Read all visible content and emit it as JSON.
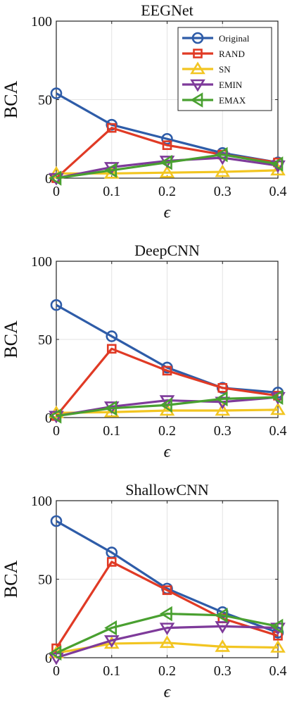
{
  "chart_data": [
    {
      "type": "line",
      "title": "EEGNet",
      "xlabel": "ϵ",
      "ylabel": "BCA",
      "x": [
        0,
        0.1,
        0.2,
        0.3,
        0.4
      ],
      "x_tick_labels": [
        "0",
        "0.1",
        "0.2",
        "0.3",
        "0.4"
      ],
      "y_tick_labels": [
        "0",
        "50",
        "100"
      ],
      "ylim": [
        0,
        100
      ],
      "grid": true,
      "legend_position": "top-right",
      "series": [
        {
          "name": "Original",
          "marker": "circle",
          "color": "#2E5CA8",
          "values": [
            54,
            34,
            25,
            16,
            10
          ]
        },
        {
          "name": "RAND",
          "marker": "square",
          "color": "#E03A25",
          "values": [
            0,
            32,
            21,
            15,
            10
          ]
        },
        {
          "name": "SN",
          "marker": "triangle-up",
          "color": "#F2C521",
          "values": [
            3,
            3,
            3.5,
            4,
            5
          ]
        },
        {
          "name": "EMIN",
          "marker": "triangle-down",
          "color": "#7E3A9A",
          "values": [
            0,
            7,
            11,
            13,
            8
          ]
        },
        {
          "name": "EMAX",
          "marker": "triangle-left",
          "color": "#49A030",
          "values": [
            0,
            5,
            10,
            15,
            9
          ]
        }
      ]
    },
    {
      "type": "line",
      "title": "DeepCNN",
      "xlabel": "ϵ",
      "ylabel": "BCA",
      "x": [
        0,
        0.1,
        0.2,
        0.3,
        0.4
      ],
      "x_tick_labels": [
        "0",
        "0.1",
        "0.2",
        "0.3",
        "0.4"
      ],
      "y_tick_labels": [
        "0",
        "50",
        "100"
      ],
      "ylim": [
        0,
        100
      ],
      "grid": true,
      "series": [
        {
          "name": "Original",
          "marker": "circle",
          "color": "#2E5CA8",
          "values": [
            72,
            52,
            32,
            19,
            16
          ]
        },
        {
          "name": "RAND",
          "marker": "square",
          "color": "#E03A25",
          "values": [
            1,
            44,
            30,
            19,
            14
          ]
        },
        {
          "name": "SN",
          "marker": "triangle-up",
          "color": "#F2C521",
          "values": [
            3,
            3.5,
            4.5,
            4.5,
            5
          ]
        },
        {
          "name": "EMIN",
          "marker": "triangle-down",
          "color": "#7E3A9A",
          "values": [
            1,
            7,
            11,
            10,
            13
          ]
        },
        {
          "name": "EMAX",
          "marker": "triangle-left",
          "color": "#49A030",
          "values": [
            1,
            6,
            8,
            12,
            13
          ]
        }
      ]
    },
    {
      "type": "line",
      "title": "ShallowCNN",
      "xlabel": "ϵ",
      "ylabel": "BCA",
      "x": [
        0,
        0.1,
        0.2,
        0.3,
        0.4
      ],
      "x_tick_labels": [
        "0",
        "0.1",
        "0.2",
        "0.3",
        "0.4"
      ],
      "y_tick_labels": [
        "0",
        "50",
        "100"
      ],
      "ylim": [
        0,
        100
      ],
      "grid": true,
      "series": [
        {
          "name": "Original",
          "marker": "circle",
          "color": "#2E5CA8",
          "values": [
            87,
            67,
            44,
            29,
            16
          ]
        },
        {
          "name": "RAND",
          "marker": "square",
          "color": "#E03A25",
          "values": [
            6,
            61,
            43,
            25,
            14
          ]
        },
        {
          "name": "SN",
          "marker": "triangle-up",
          "color": "#F2C521",
          "values": [
            3,
            9,
            9.5,
            7,
            6.5
          ]
        },
        {
          "name": "EMIN",
          "marker": "triangle-down",
          "color": "#7E3A9A",
          "values": [
            0,
            11,
            19,
            20,
            19
          ]
        },
        {
          "name": "EMAX",
          "marker": "triangle-left",
          "color": "#49A030",
          "values": [
            3,
            19,
            28,
            27,
            20
          ]
        }
      ]
    }
  ]
}
